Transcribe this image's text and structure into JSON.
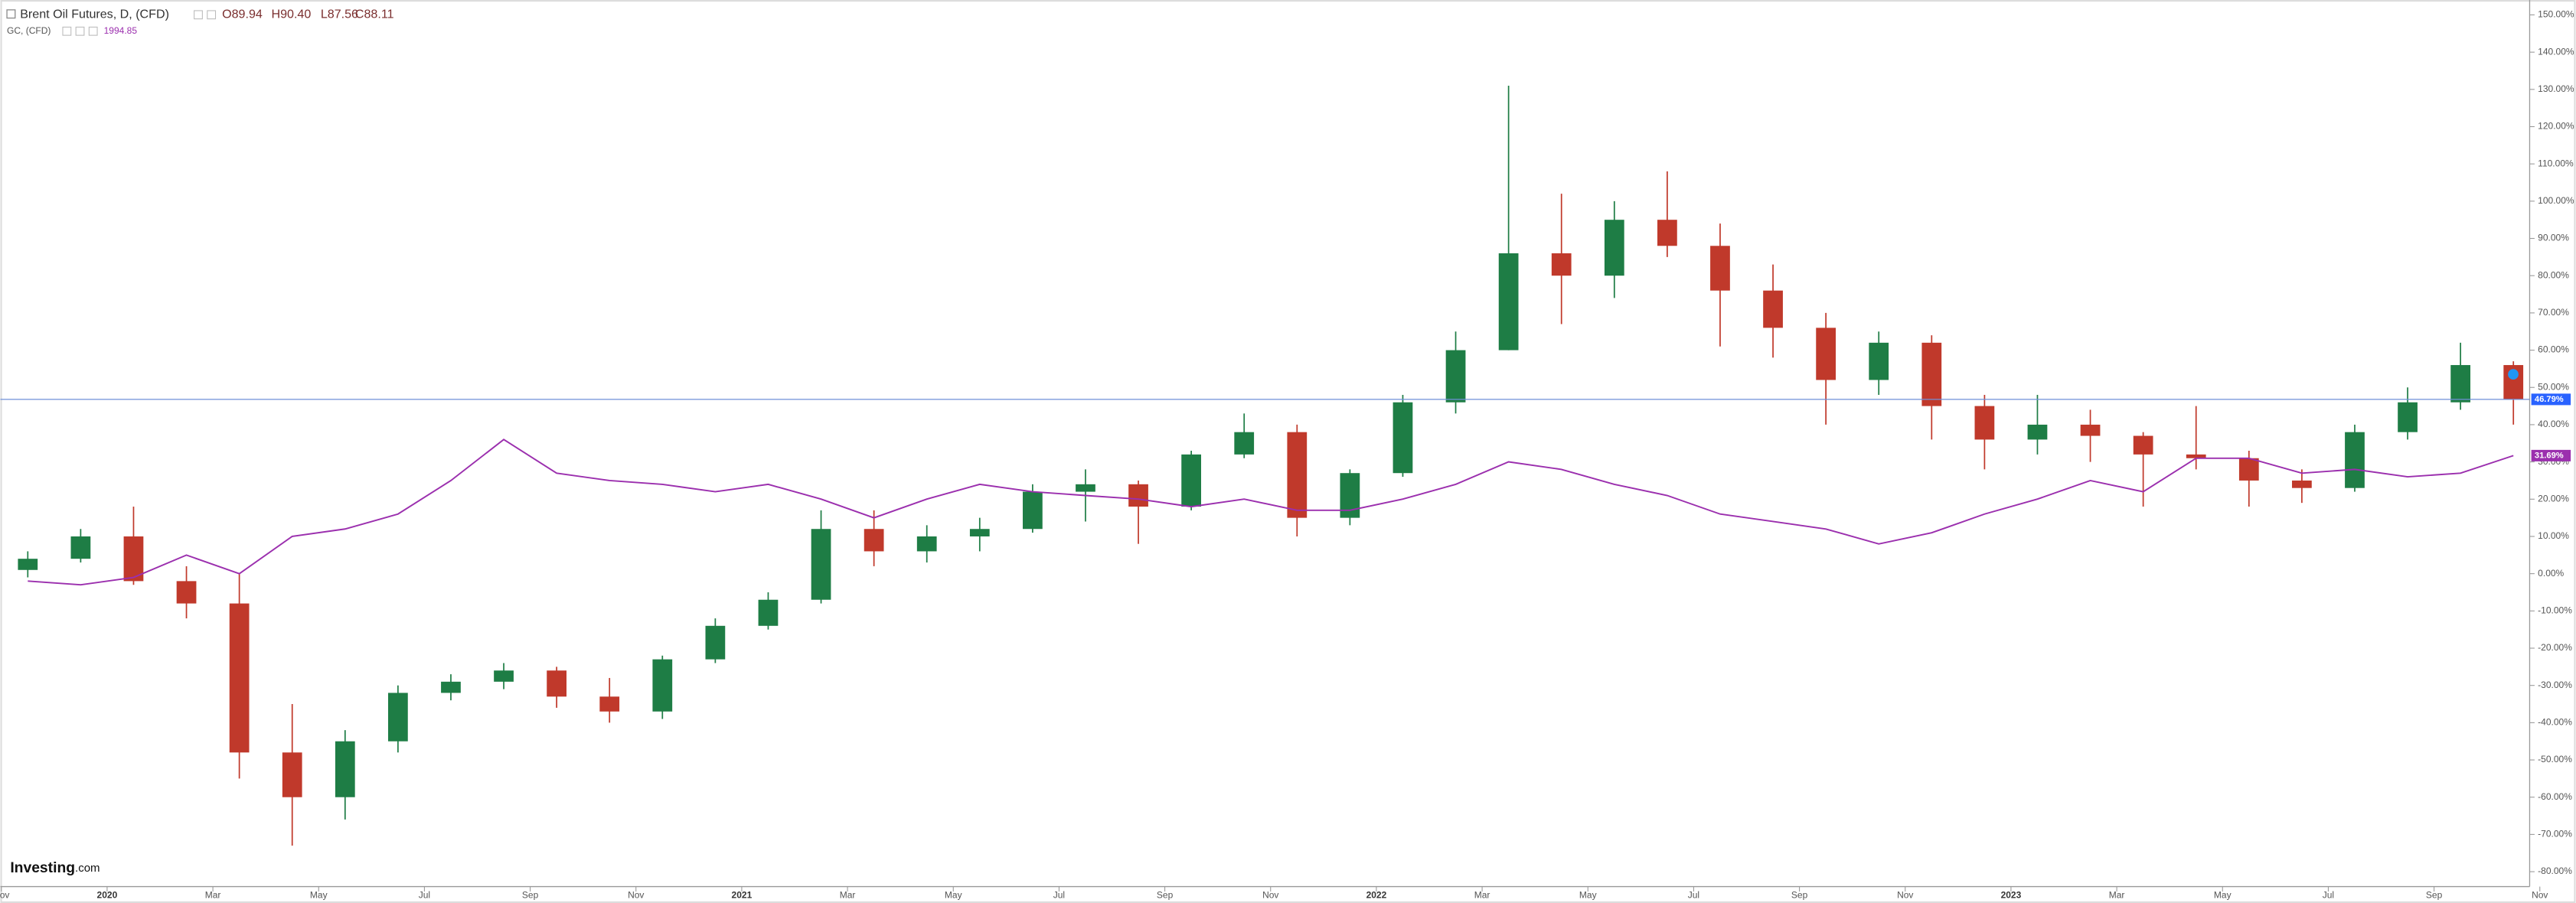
{
  "chart_data": {
    "type": "candlestick",
    "header": {
      "title": "Brent Oil Futures, D, (CFD)",
      "open": "O89.94",
      "high": "H90.40",
      "low": "L87.56",
      "close": "C88.11",
      "compare": "GC, (CFD)",
      "compare_value": "1994.85",
      "logo": "Investing",
      "logo_suffix": ".com"
    },
    "categories": [
      "Nov",
      null,
      "2020",
      null,
      "Mar",
      null,
      "May",
      null,
      "Jul",
      null,
      "Sep",
      null,
      "Nov",
      null,
      "2021",
      null,
      "Mar",
      null,
      "May",
      null,
      "Jul",
      null,
      "Sep",
      null,
      "Nov",
      null,
      "2022",
      null,
      "Mar",
      null,
      "May",
      null,
      "Jul",
      null,
      "Sep",
      null,
      "Nov",
      null,
      "2023",
      null,
      "Mar",
      null,
      "May",
      null,
      "Jul",
      null,
      "Sep",
      null,
      "Nov"
    ],
    "series": [
      {
        "name": "Brent Oil Futures",
        "type": "candlestick",
        "up_color": "#1e7d45",
        "down_color": "#c0392b",
        "line_color": "#6f8fd8",
        "open": [
          1,
          4,
          10,
          -2,
          -8,
          -48,
          -60,
          -45,
          -32,
          -29,
          -26,
          -33,
          -37,
          -23,
          -14,
          -7,
          12,
          6,
          10,
          12,
          22,
          24,
          18,
          32,
          38,
          15,
          27,
          46,
          60,
          86,
          80,
          95,
          88,
          76,
          66,
          52,
          62,
          45,
          36,
          40,
          37,
          32,
          31,
          25,
          23,
          38,
          46,
          56,
          null
        ],
        "high": [
          6,
          12,
          18,
          2,
          0,
          -35,
          -42,
          -30,
          -27,
          -24,
          -25,
          -28,
          -22,
          -12,
          -5,
          17,
          17,
          13,
          15,
          24,
          28,
          25,
          33,
          43,
          40,
          28,
          48,
          65,
          131,
          102,
          100,
          108,
          94,
          83,
          70,
          65,
          64,
          48,
          48,
          44,
          38,
          45,
          33,
          28,
          40,
          50,
          62,
          57,
          null
        ],
        "low": [
          -1,
          3,
          -3,
          -12,
          -55,
          -73,
          -66,
          -48,
          -34,
          -31,
          -36,
          -40,
          -39,
          -24,
          -15,
          -8,
          2,
          3,
          6,
          11,
          14,
          8,
          17,
          31,
          10,
          13,
          26,
          43,
          60,
          67,
          74,
          85,
          61,
          58,
          40,
          48,
          36,
          28,
          32,
          30,
          18,
          28,
          18,
          19,
          22,
          36,
          44,
          40,
          null
        ],
        "close": [
          4,
          10,
          -2,
          -8,
          -48,
          -60,
          -45,
          -32,
          -29,
          -26,
          -33,
          -37,
          -23,
          -14,
          -7,
          12,
          6,
          10,
          12,
          22,
          24,
          18,
          32,
          38,
          15,
          27,
          46,
          60,
          86,
          80,
          95,
          88,
          76,
          66,
          52,
          62,
          45,
          36,
          40,
          37,
          32,
          31,
          25,
          23,
          38,
          46,
          56,
          46.79,
          null
        ],
        "last_value": 46.79,
        "last_label": "46.79%"
      },
      {
        "name": "GC, (CFD)",
        "type": "line",
        "color": "#9b2fae",
        "values": [
          -2,
          -3,
          -1,
          5,
          0,
          10,
          12,
          16,
          25,
          36,
          27,
          25,
          24,
          22,
          24,
          20,
          15,
          20,
          24,
          22,
          21,
          20,
          18,
          20,
          17,
          17,
          20,
          24,
          30,
          28,
          24,
          21,
          16,
          14,
          12,
          8,
          11,
          16,
          20,
          25,
          22,
          31,
          31,
          27,
          28,
          26,
          27,
          31.69,
          null
        ],
        "last_value": 31.69,
        "last_label": "31.69%"
      }
    ],
    "ylim": [
      -84,
      154
    ],
    "yticks": [
      {
        "value": 150,
        "label": "150.00%"
      },
      {
        "value": 140,
        "label": "140.00%"
      },
      {
        "value": 130,
        "label": "130.00%"
      },
      {
        "value": 120,
        "label": "120.00%"
      },
      {
        "value": 110,
        "label": "110.00%"
      },
      {
        "value": 100,
        "label": "100.00%"
      },
      {
        "value": 90,
        "label": "90.00%"
      },
      {
        "value": 80,
        "label": "80.00%"
      },
      {
        "value": 70,
        "label": "70.00%"
      },
      {
        "value": 60,
        "label": "60.00%"
      },
      {
        "value": 50,
        "label": "50.00%"
      },
      {
        "value": 40,
        "label": "40.00%"
      },
      {
        "value": 30,
        "label": "30.00%"
      },
      {
        "value": 20,
        "label": "20.00%"
      },
      {
        "value": 10,
        "label": "10.00%"
      },
      {
        "value": 0,
        "label": "0.00%"
      },
      {
        "value": -10,
        "label": "-10.00%"
      },
      {
        "value": -20,
        "label": "-20.00%"
      },
      {
        "value": -30,
        "label": "-30.00%"
      },
      {
        "value": -40,
        "label": "-40.00%"
      },
      {
        "value": -50,
        "label": "-50.00%"
      },
      {
        "value": -60,
        "label": "-60.00%"
      },
      {
        "value": -70,
        "label": "-70.00%"
      },
      {
        "value": -80,
        "label": "-80.00%"
      }
    ],
    "grid": false
  }
}
